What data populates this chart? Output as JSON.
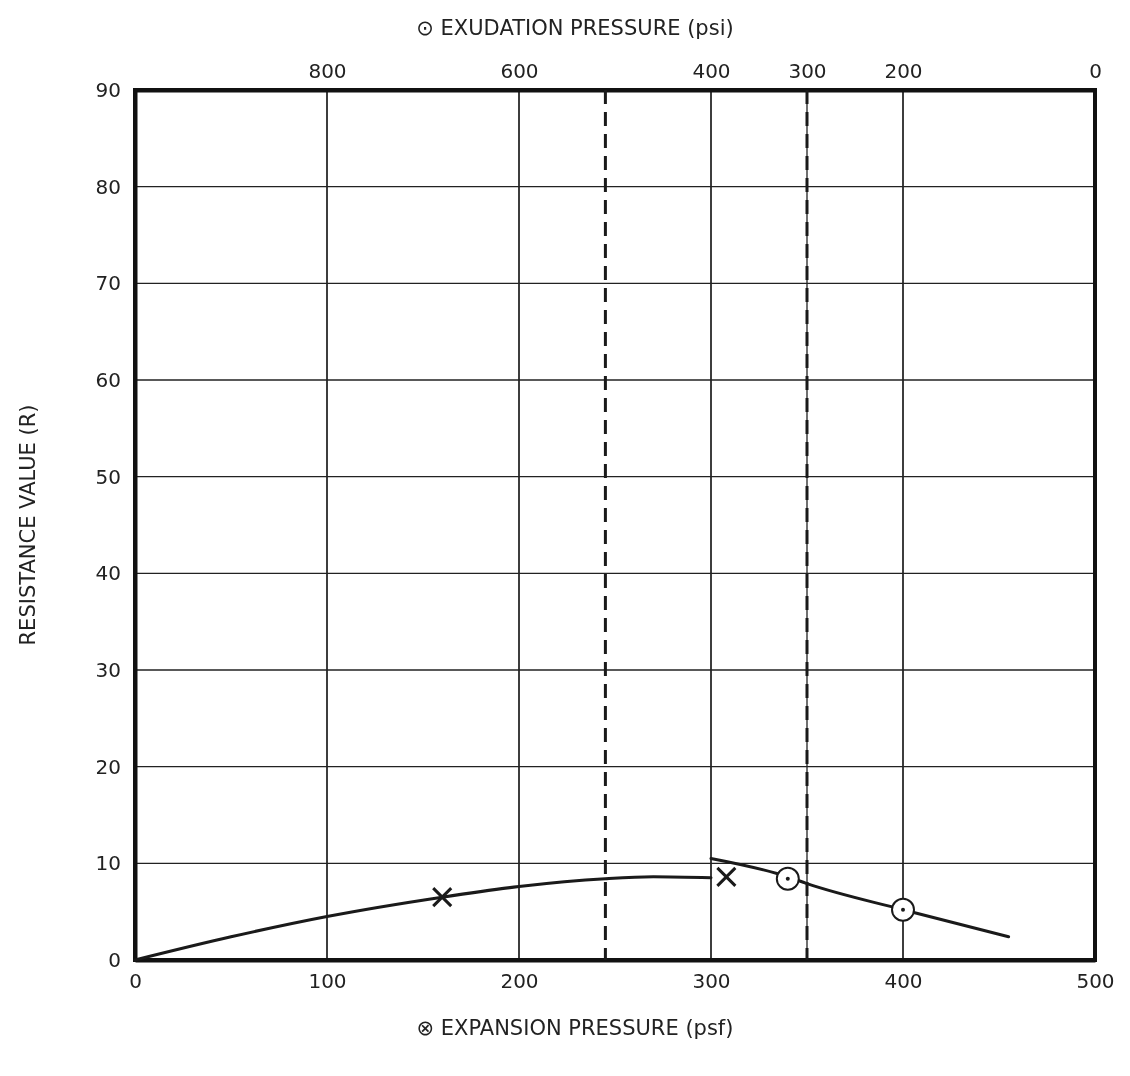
{
  "chart_data": {
    "type": "line",
    "xlabel": "⊗   EXPANSION PRESSURE (psf)",
    "x2label": "⊙   EXUDATION PRESSURE (psi)",
    "ylabel": "RESISTANCE VALUE (R)",
    "xlim": [
      0,
      500
    ],
    "xticks": [
      0,
      100,
      200,
      300,
      400,
      500
    ],
    "x2lim": [
      1000,
      0
    ],
    "x2ticks": [
      800,
      600,
      400,
      300,
      200,
      0
    ],
    "ylim": [
      0,
      90
    ],
    "yticks": [
      0,
      10,
      20,
      30,
      40,
      50,
      60,
      70,
      80,
      90
    ],
    "grid": true,
    "series": [
      {
        "color": "#1a1a1a",
        "x": [
          0,
          50,
          100,
          160,
          200,
          245,
          270,
          300
        ],
        "values": [
          0,
          2.4,
          4.5,
          6.5,
          7.6,
          8.4,
          8.6,
          8.5
        ],
        "marker": "none",
        "line_style": "solid"
      },
      {
        "type": "scatter",
        "color": "#1a1a1a",
        "x": [
          160,
          308
        ],
        "values": [
          6.5,
          8.6
        ],
        "marker": "cross"
      },
      {
        "axis": "x2",
        "color": "#1a1a1a",
        "x": [
          400,
          320,
          300,
          200,
          90
        ],
        "values": [
          10.5,
          8.6,
          7.9,
          5.2,
          2.4
        ],
        "marker": "none",
        "line_style": "solid"
      },
      {
        "type": "scatter",
        "axis": "x2",
        "color": "#1a1a1a",
        "x": [
          320,
          200
        ],
        "values": [
          8.4,
          5.2
        ],
        "marker": "circle"
      }
    ],
    "ref_lines": [
      {
        "axis": "x",
        "value": 350,
        "color": "#1a1a1a",
        "line_style": "dashed"
      },
      {
        "axis": "x",
        "value": 245,
        "color": "#1a1a1a",
        "line_style": "dashed"
      }
    ]
  }
}
